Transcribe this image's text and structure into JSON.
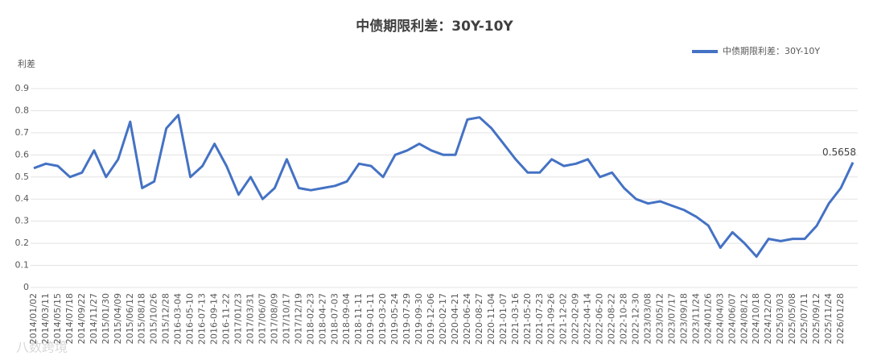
{
  "chart_data": {
    "type": "line",
    "title": "中债期限利差：30Y-10Y",
    "y_label": "利差",
    "watermark": "八数跨境",
    "categories": [
      "2014/01/02",
      "2014/03/11",
      "2014/05/15",
      "2014/07/18",
      "2014/09/22",
      "2014/11/27",
      "2015/01/30",
      "2015/04/09",
      "2015/06/12",
      "2015/08/18",
      "2015/10/26",
      "2015/12/28",
      "2016-03-04",
      "2016-05-10",
      "2016-07-13",
      "2016-09-14",
      "2016-11-22",
      "2017/01/23",
      "2017/03/31",
      "2017/06/07",
      "2017/08/09",
      "2017/10/17",
      "2017/12/19",
      "2018-02-23",
      "2018-04-27",
      "2018-07-03",
      "2018-09-04",
      "2018-11-11",
      "2019-01-11",
      "2019-03-20",
      "2019-05-24",
      "2019-07-29",
      "2019-09-30",
      "2019-12-06",
      "2020-02-17",
      "2020-04-21",
      "2020-06-24",
      "2020-08-27",
      "2020-11-04",
      "2021-01-07",
      "2021-03-16",
      "2021-05-20",
      "2021-07-23",
      "2021-09-26",
      "2021-12-02",
      "2022-02-09",
      "2022-04-14",
      "2022-06-20",
      "2022-08-22",
      "2022-10-28",
      "2022-12-30",
      "2023/03/08",
      "2023/05/12",
      "2023/07/17",
      "2023/09/18",
      "2023/11/24",
      "2024/01/26",
      "2024/04/03",
      "2024/06/07",
      "2024/08/12",
      "2024/10/18",
      "2024/12/20",
      "2025/03/03",
      "2025/05/08",
      "2025/07/11",
      "2025/09/12",
      "2025/11/24",
      "2026/01/28",
      null
    ],
    "series": [
      {
        "name": "中债期限利差：30Y-10Y",
        "color": "#4472c4",
        "values": [
          0.54,
          0.56,
          0.55,
          0.5,
          0.52,
          0.62,
          0.5,
          0.58,
          0.75,
          0.45,
          0.48,
          0.72,
          0.78,
          0.5,
          0.55,
          0.65,
          0.55,
          0.42,
          0.5,
          0.4,
          0.45,
          0.58,
          0.45,
          0.44,
          0.45,
          0.46,
          0.48,
          0.56,
          0.55,
          0.5,
          0.6,
          0.62,
          0.65,
          0.62,
          0.6,
          0.6,
          0.76,
          0.77,
          0.72,
          0.65,
          0.58,
          0.52,
          0.52,
          0.58,
          0.55,
          0.56,
          0.58,
          0.5,
          0.52,
          0.45,
          0.4,
          0.38,
          0.39,
          0.37,
          0.35,
          0.32,
          0.28,
          0.18,
          0.25,
          0.2,
          0.14,
          0.22,
          0.21,
          0.22,
          0.22,
          0.28,
          0.38,
          0.45,
          0.5658
        ]
      }
    ],
    "ylim": [
      0,
      0.9
    ],
    "yticks": [
      0,
      0.1,
      0.2,
      0.3,
      0.4,
      0.5,
      0.6,
      0.7,
      0.8,
      0.9
    ],
    "grid": true,
    "legend": "top-right"
  }
}
